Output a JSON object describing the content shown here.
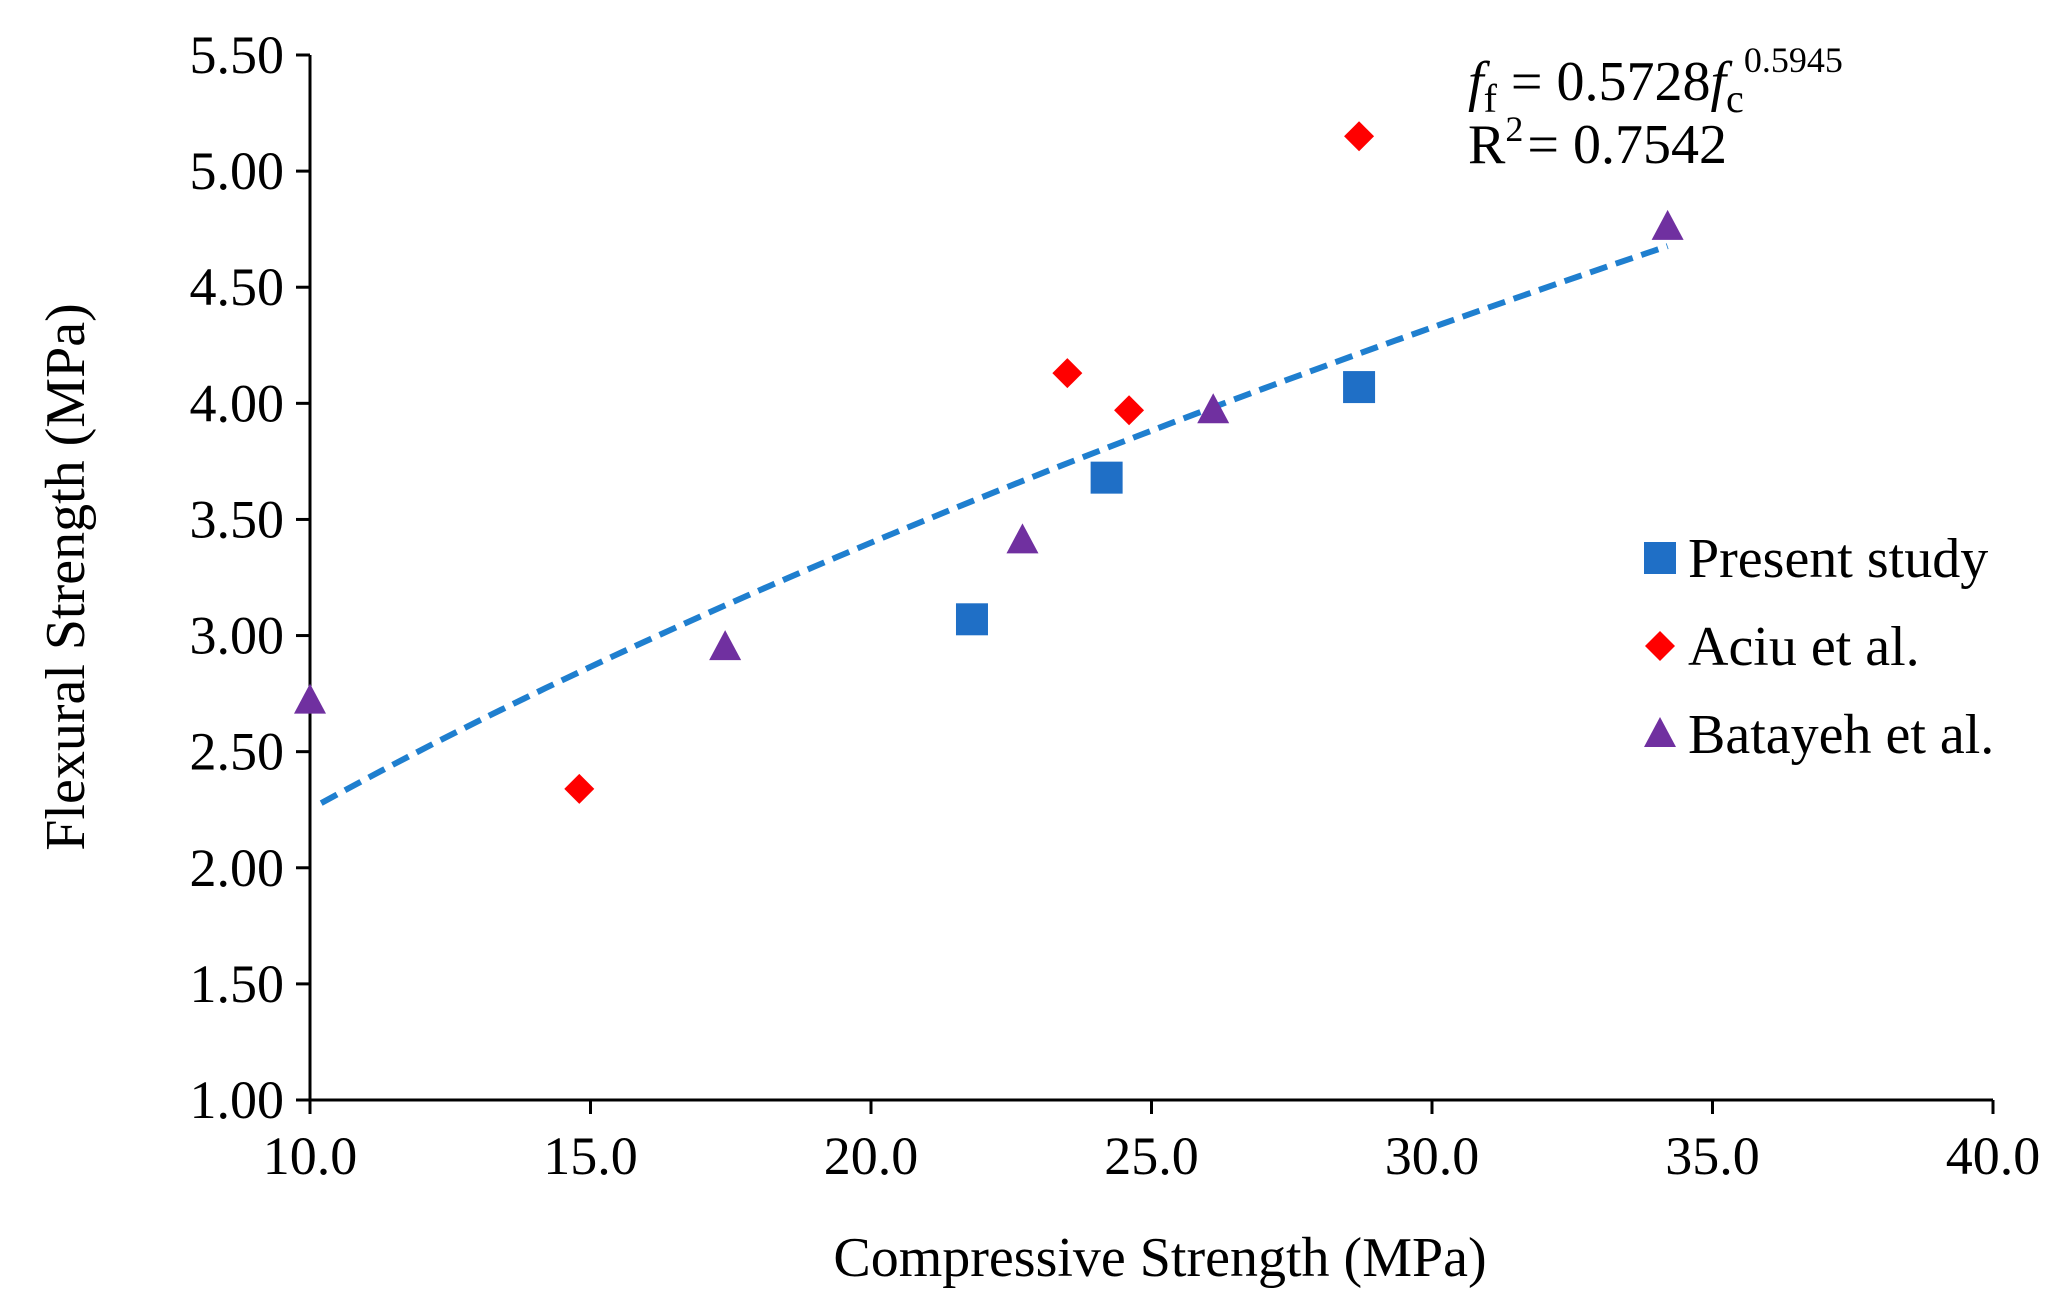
{
  "chart_data": {
    "type": "scatter",
    "title": "",
    "xlabel": "Compressive Strength (MPa)",
    "ylabel": "Flexural Strength (MPa)",
    "xlim": [
      10.0,
      40.0
    ],
    "ylim": [
      1.0,
      5.5
    ],
    "x_ticks": [
      "10.0",
      "15.0",
      "20.0",
      "25.0",
      "30.0",
      "35.0",
      "40.0"
    ],
    "y_ticks": [
      "1.00",
      "1.50",
      "2.00",
      "2.50",
      "3.00",
      "3.50",
      "4.00",
      "4.50",
      "5.00",
      "5.50"
    ],
    "grid": false,
    "legend_position": "right",
    "series": [
      {
        "name": "Present study",
        "marker": "square",
        "color": "#1f6fc6",
        "points": [
          {
            "x": 21.8,
            "y": 3.07
          },
          {
            "x": 24.2,
            "y": 3.68
          },
          {
            "x": 28.7,
            "y": 4.07
          }
        ]
      },
      {
        "name": "Aciu et al.",
        "marker": "diamond",
        "color": "#ff0000",
        "points": [
          {
            "x": 14.8,
            "y": 2.34
          },
          {
            "x": 23.5,
            "y": 4.13
          },
          {
            "x": 24.6,
            "y": 3.97
          },
          {
            "x": 28.7,
            "y": 5.15
          }
        ]
      },
      {
        "name": "Batayeh et al.",
        "marker": "triangle",
        "color": "#7030a0",
        "points": [
          {
            "x": 10.0,
            "y": 2.72
          },
          {
            "x": 17.4,
            "y": 2.95
          },
          {
            "x": 22.7,
            "y": 3.41
          },
          {
            "x": 26.1,
            "y": 3.97
          },
          {
            "x": 34.2,
            "y": 4.76
          }
        ]
      }
    ],
    "trendline": {
      "type": "power",
      "coefficient": 0.5728,
      "exponent": 0.5945,
      "x_range": [
        10.2,
        34.2
      ],
      "color": "#1f7fcf",
      "dashed": true
    },
    "annotation": {
      "lhs_symbol": "f",
      "lhs_subscript": "f",
      "equals_coef": " = 0.5728",
      "rhs_symbol": "f",
      "rhs_subscript": "c",
      "exponent_text": "0.5945",
      "r2_base": "R",
      "r2_sup": "2",
      "r2_value": "= 0.7542"
    }
  }
}
